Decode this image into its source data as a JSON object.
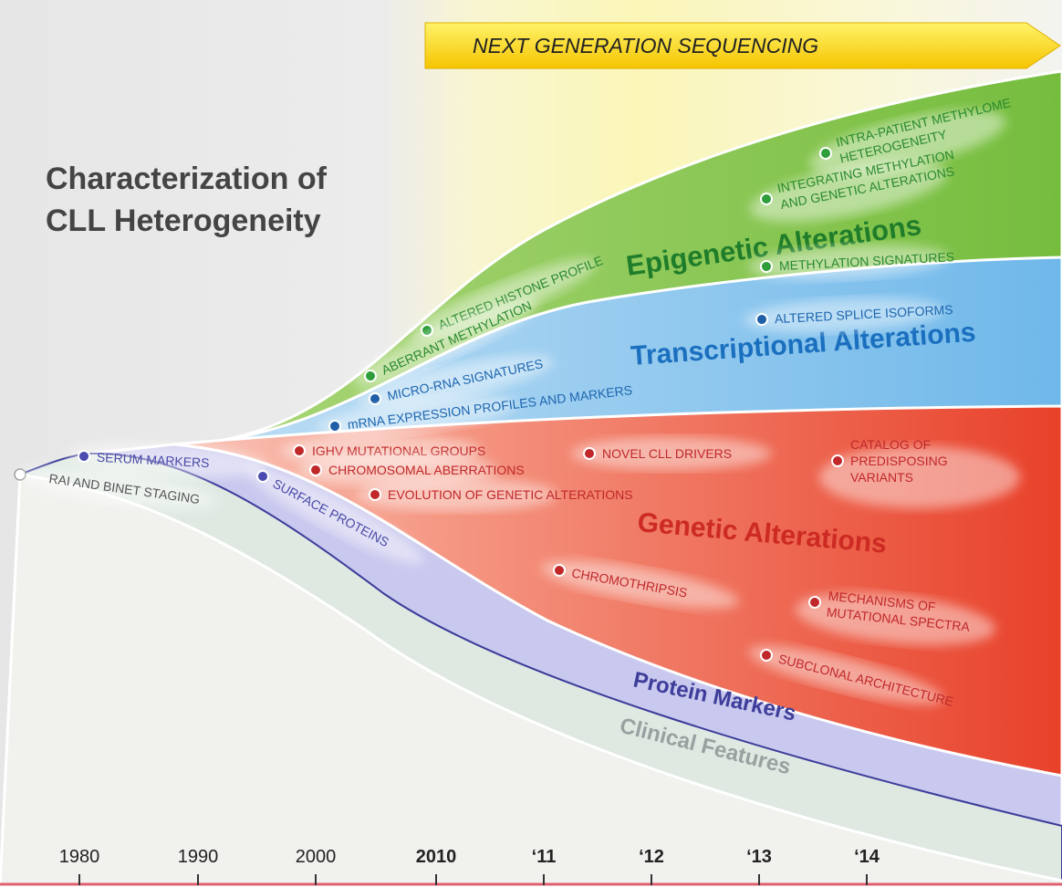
{
  "title": {
    "lines": [
      "Characterization of",
      "CLL Heterogeneity"
    ]
  },
  "banner": "NEXT GENERATION SEQUENCING",
  "bands": [
    {
      "name": "Epigenetic Alterations",
      "items": [
        {
          "lines": [
            "ALTERED HISTONE PROFILE"
          ]
        },
        {
          "lines": [
            "ABERRANT METHYLATION"
          ]
        },
        {
          "lines": [
            "INTRA-PATIENT METHYLOME",
            "HETEROGENEITY"
          ]
        },
        {
          "lines": [
            "INTEGRATING METHYLATION",
            "AND GENETIC ALTERATIONS"
          ]
        },
        {
          "lines": [
            "METHYLATION SIGNATURES"
          ]
        }
      ]
    },
    {
      "name": "Transcriptional Alterations",
      "items": [
        {
          "lines": [
            "MICRO-RNA SIGNATURES"
          ]
        },
        {
          "lines": [
            "mRNA EXPRESSION PROFILES AND MARKERS"
          ]
        },
        {
          "lines": [
            "ALTERED SPLICE ISOFORMS"
          ]
        }
      ]
    },
    {
      "name": "Genetic Alterations",
      "items": [
        {
          "lines": [
            "IGHV MUTATIONAL GROUPS"
          ]
        },
        {
          "lines": [
            "CHROMOSOMAL ABERRATIONS"
          ]
        },
        {
          "lines": [
            "EVOLUTION OF GENETIC ALTERATIONS"
          ]
        },
        {
          "lines": [
            "NOVEL CLL DRIVERS"
          ]
        },
        {
          "lines": [
            "CATALOG OF",
            "PREDISPOSING",
            "VARIANTS"
          ]
        },
        {
          "lines": [
            "CHROMOTHRIPSIS"
          ]
        },
        {
          "lines": [
            "MECHANISMS OF",
            "MUTATIONAL SPECTRA"
          ]
        },
        {
          "lines": [
            "SUBCLONAL ARCHITECTURE"
          ]
        }
      ]
    },
    {
      "name": "Protein Markers",
      "items": [
        {
          "lines": [
            "SERUM MARKERS"
          ]
        },
        {
          "lines": [
            "SURFACE PROTEINS"
          ]
        }
      ]
    },
    {
      "name": "Clinical Features",
      "items": [
        {
          "lines": [
            "RAI AND BINET STAGING"
          ]
        }
      ]
    }
  ],
  "timeline": [
    "1980",
    "1990",
    "2000",
    "2010",
    "‘11",
    "‘12",
    "‘13",
    "‘14"
  ]
}
